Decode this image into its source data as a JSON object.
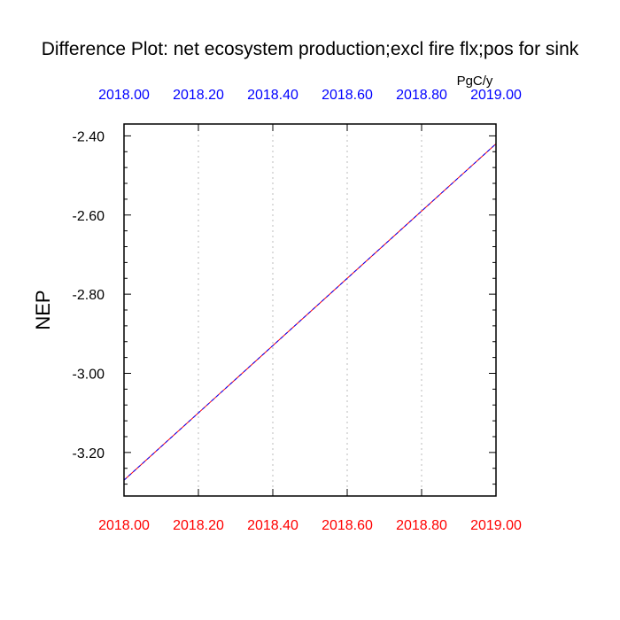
{
  "chart_data": {
    "type": "line",
    "title": "Difference Plot: net ecosystem production;excl fire flx;pos for sink",
    "units": "PgC/y",
    "ylabel": "NEP",
    "xlim": [
      2018.0,
      2019.0
    ],
    "ylim": [
      -3.31,
      -2.37
    ],
    "xticks": [
      2018.0,
      2018.2,
      2018.4,
      2018.6,
      2018.8,
      2019.0
    ],
    "xtick_labels": [
      "2018.00",
      "2018.20",
      "2018.40",
      "2018.60",
      "2018.80",
      "2019.00"
    ],
    "yticks": [
      -3.2,
      -3.0,
      -2.8,
      -2.6,
      -2.4
    ],
    "ytick_labels": [
      "-3.20",
      "-3.00",
      "-2.80",
      "-2.60",
      "-2.40"
    ],
    "y_minor_step": 0.04,
    "x_grid": "dotted",
    "colors": {
      "top_axis_labels": "#0000ff",
      "bottom_axis_labels": "#ff0000",
      "axis_labels": "#000000",
      "frame": "#000000",
      "grid": "#bbbbbb"
    },
    "series": [
      {
        "x": [
          2018.0,
          2019.0
        ],
        "y": [
          -3.27,
          -2.42
        ],
        "color": "#ff0000",
        "dash": "solid"
      },
      {
        "x": [
          2018.0,
          2019.0
        ],
        "y": [
          -3.27,
          -2.42
        ],
        "color": "#0000ff",
        "dash": "dashed"
      }
    ]
  }
}
